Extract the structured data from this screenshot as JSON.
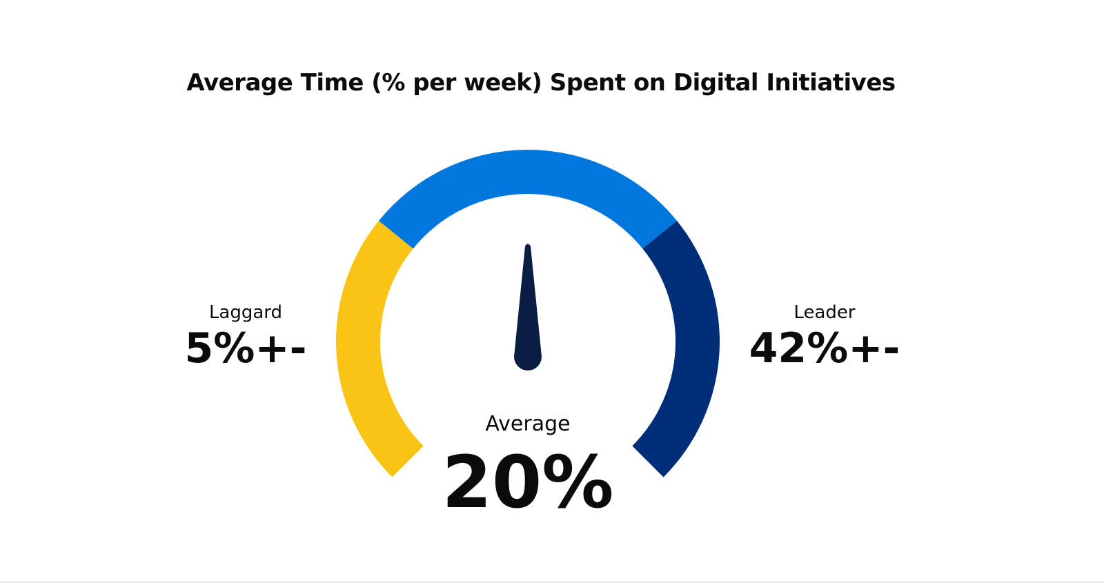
{
  "chart_data": {
    "type": "gauge",
    "title": "Average Time (% per week) Spent on Digital Initiatives",
    "segments": [
      {
        "name": "Laggard",
        "color": "#F9C416"
      },
      {
        "name": "Average",
        "color": "#0077DD"
      },
      {
        "name": "Leader",
        "color": "#002D78"
      }
    ],
    "needle_color": "#0A1E44",
    "needle_position": "Average",
    "labels": {
      "laggard": {
        "label": "Laggard",
        "value": "5%+-"
      },
      "average": {
        "label": "Average",
        "value": "20%"
      },
      "leader": {
        "label": "Leader",
        "value": "42%+-"
      }
    }
  }
}
